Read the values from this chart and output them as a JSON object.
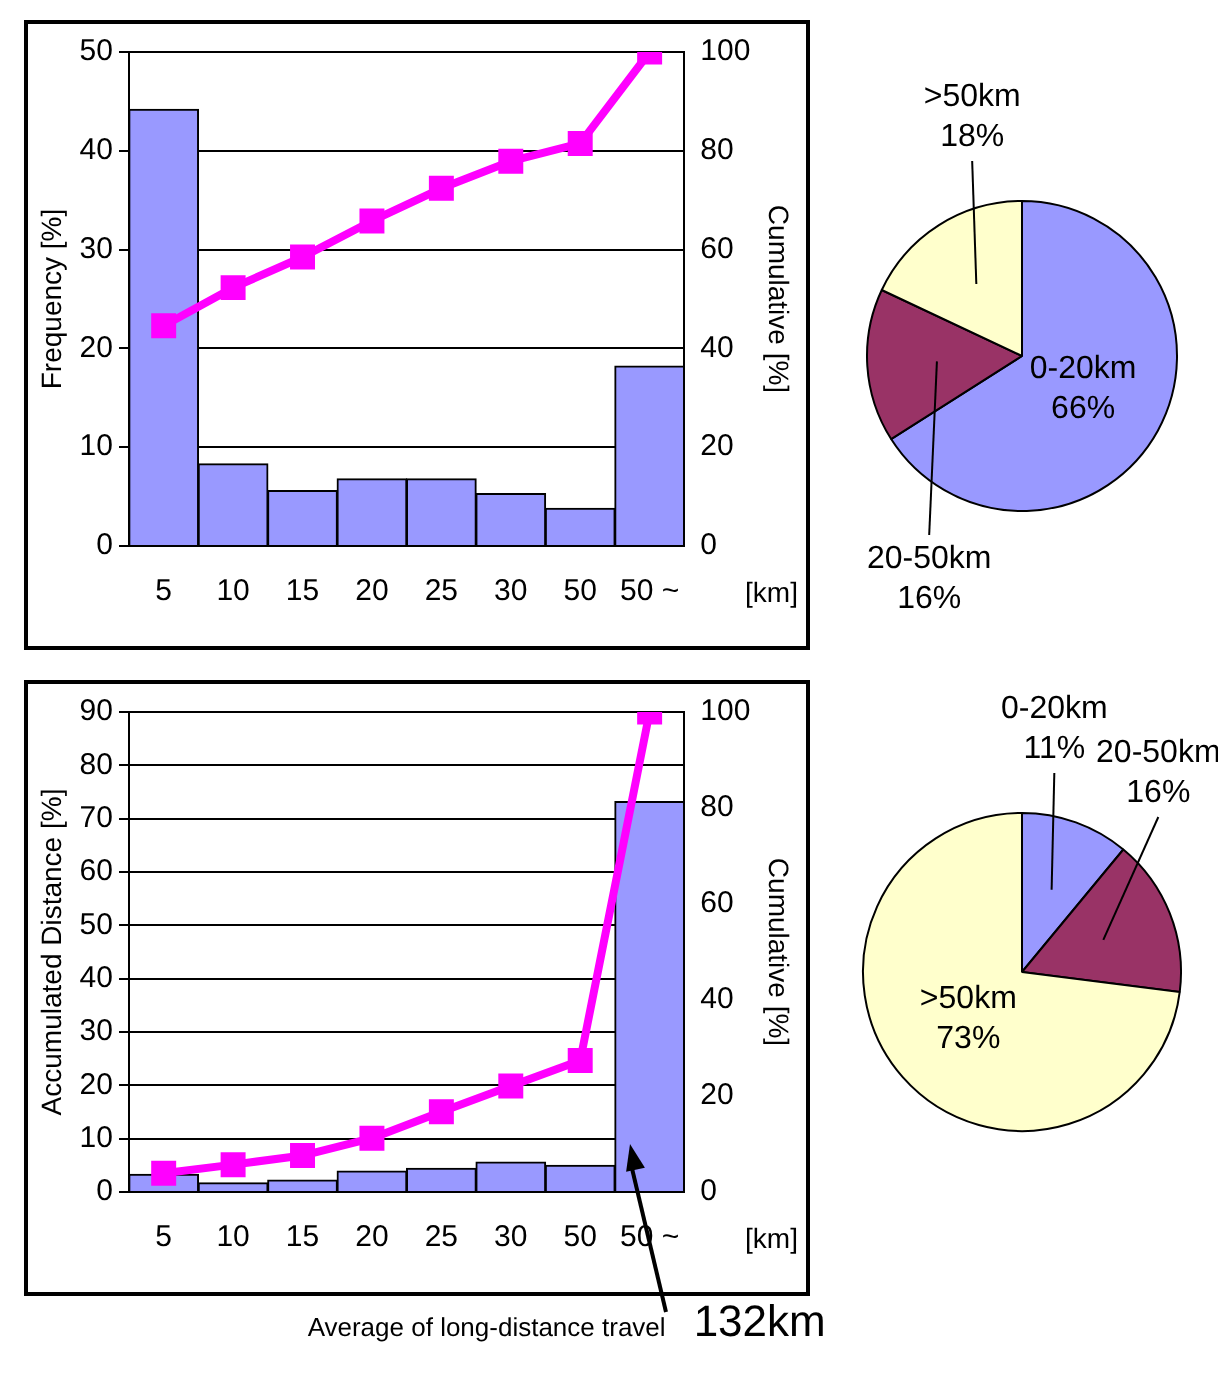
{
  "chart_data": [
    {
      "type": "bar",
      "categories": [
        "5",
        "10",
        "15",
        "20",
        "25",
        "30",
        "50",
        "50 ~"
      ],
      "xlabel": "[km]",
      "ylabel": "Frequency [%]",
      "y2label": "Cumulative [%]",
      "series": [
        {
          "type": "bar",
          "color": "#9999ff",
          "values": [
            44.2,
            8.3,
            5.6,
            6.8,
            6.8,
            5.3,
            3.8,
            18.2
          ]
        },
        {
          "type": "line",
          "axis": "y2",
          "color": "#ff00ff",
          "values": [
            44.6,
            52.3,
            58.5,
            65.8,
            72.4,
            77.9,
            81.5,
            100
          ]
        }
      ],
      "ylim": [
        0,
        50
      ],
      "yticks": [
        0,
        10,
        20,
        30,
        40,
        50
      ],
      "y2lim": [
        0,
        100
      ],
      "y2ticks": [
        0,
        20,
        40,
        60,
        80,
        100
      ],
      "grid": "y",
      "legend": false,
      "marker": "square"
    },
    {
      "type": "bar",
      "categories": [
        "5",
        "10",
        "15",
        "20",
        "25",
        "30",
        "50",
        "50 ~"
      ],
      "xlabel": "[km]",
      "ylabel": "Accumulated Distance [%]",
      "y2label": "Cumulative [%]",
      "series": [
        {
          "type": "bar",
          "color": "#9999ff",
          "values": [
            3.3,
            1.7,
            2.2,
            3.9,
            4.4,
            5.6,
            5.0,
            73.2
          ]
        },
        {
          "type": "line",
          "axis": "y2",
          "color": "#ff00ff",
          "values": [
            3.9,
            5.7,
            7.6,
            11.2,
            16.7,
            22.1,
            27.4,
            100
          ]
        }
      ],
      "ylim": [
        0,
        90
      ],
      "yticks": [
        0,
        10,
        20,
        30,
        40,
        50,
        60,
        70,
        80,
        90
      ],
      "y2lim": [
        0,
        100
      ],
      "y2ticks": [
        0,
        20,
        40,
        60,
        80,
        100
      ],
      "grid": "y",
      "legend": false,
      "marker": "square",
      "annotations": [
        "Average of long-distance travel",
        "132km"
      ]
    },
    {
      "type": "pie",
      "categories": [
        "0-20km",
        "20-50km",
        ">50km"
      ],
      "values": [
        66,
        16,
        18
      ],
      "value_labels": [
        "66%",
        "16%",
        "18%"
      ],
      "colors": [
        "#9999ff",
        "#993366",
        "#ffffcc"
      ],
      "legend": false
    },
    {
      "type": "pie",
      "categories": [
        "0-20km",
        "20-50km",
        ">50km"
      ],
      "values": [
        11,
        16,
        73
      ],
      "value_labels": [
        "11%",
        "16%",
        "73%"
      ],
      "colors": [
        "#9999ff",
        "#993366",
        "#ffffcc"
      ],
      "legend": false
    }
  ]
}
